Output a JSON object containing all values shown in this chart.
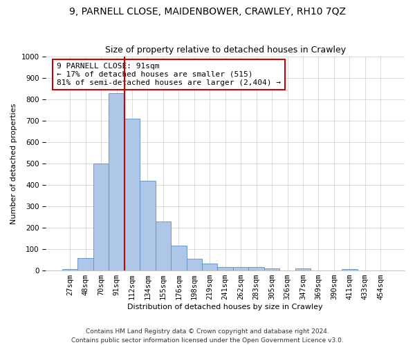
{
  "title1": "9, PARNELL CLOSE, MAIDENBOWER, CRAWLEY, RH10 7QZ",
  "title2": "Size of property relative to detached houses in Crawley",
  "xlabel": "Distribution of detached houses by size in Crawley",
  "ylabel": "Number of detached properties",
  "bin_labels": [
    "27sqm",
    "48sqm",
    "70sqm",
    "91sqm",
    "112sqm",
    "134sqm",
    "155sqm",
    "176sqm",
    "198sqm",
    "219sqm",
    "241sqm",
    "262sqm",
    "283sqm",
    "305sqm",
    "326sqm",
    "347sqm",
    "369sqm",
    "390sqm",
    "411sqm",
    "433sqm",
    "454sqm"
  ],
  "bar_values": [
    8,
    57,
    500,
    830,
    710,
    418,
    230,
    115,
    55,
    33,
    16,
    16,
    15,
    10,
    0,
    10,
    0,
    0,
    8,
    0,
    0
  ],
  "bar_color": "#aec6e8",
  "bar_edge_color": "#5a8fc2",
  "vline_x_index": 3,
  "vline_color": "#cc0000",
  "annotation_text": "9 PARNELL CLOSE: 91sqm\n← 17% of detached houses are smaller (515)\n81% of semi-detached houses are larger (2,404) →",
  "annotation_box_color": "#ffffff",
  "annotation_box_edge_color": "#cc0000",
  "footer_text": "Contains HM Land Registry data © Crown copyright and database right 2024.\nContains public sector information licensed under the Open Government Licence v3.0.",
  "ylim": [
    0,
    1000
  ],
  "yticks": [
    0,
    100,
    200,
    300,
    400,
    500,
    600,
    700,
    800,
    900,
    1000
  ],
  "title1_fontsize": 10,
  "title2_fontsize": 9,
  "axis_label_fontsize": 8,
  "tick_fontsize": 7.5,
  "annotation_fontsize": 8,
  "footer_fontsize": 6.5
}
